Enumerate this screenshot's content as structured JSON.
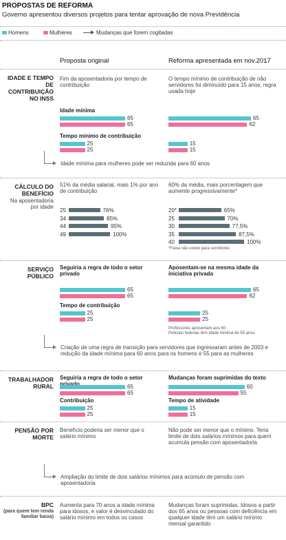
{
  "header": {
    "title": "PROPOSTAS DE REFORMA",
    "subtitle": "Governo apresentou diversos projetos para tentar aprovação de nova Previdência"
  },
  "legend": {
    "men": "Homens",
    "women": "Mulheres",
    "changes": "Mudanças que forem cogitadas"
  },
  "colors": {
    "men": "#55c5d0",
    "women": "#ef6f9c",
    "pct": "#5b6e76"
  },
  "columns": {
    "original": "Proposta original",
    "reform": "Reforma apresentada em nov.2017"
  },
  "sections": [
    {
      "label": "IDADE E TEMPO DE CONTRIBUIÇÃO NO INSS",
      "original_text": "Fim da aposentadoria por tempo de contribuição",
      "reform_text": "O tempo mínimo de contribuição de não servidores foi diminuído para 15 anos, regra usada hoje",
      "groups": [
        {
          "original_label": "Idade mínima",
          "original": {
            "men": 65,
            "women": 65
          },
          "reform": {
            "men": 65,
            "women": 62
          }
        },
        {
          "original_label": "Tempo mínimo de contribuição",
          "original": {
            "men": 25,
            "women": 25
          },
          "reform": {
            "men": 15,
            "women": 15
          }
        }
      ],
      "note": "Idade mínima para mulheres pode ser reduzida para 60 anos"
    },
    {
      "label": "CÁLCULO DO BENEFÍCIO",
      "sublabel": "Na aposentadoria por idade",
      "original_text": "51% da média salarial, mais 1% por ano de contribuição",
      "reform_text": "60% da média, mais porcentagem que aumente progressivamente*",
      "rows_original": [
        {
          "years": "25",
          "pct": 76,
          "pct_label": "76%"
        },
        {
          "years": "34",
          "pct": 85,
          "pct_label": "85%"
        },
        {
          "years": "44",
          "pct": 95,
          "pct_label": "95%"
        },
        {
          "years": "49",
          "pct": 100,
          "pct_label": "100%"
        }
      ],
      "rows_reform": [
        {
          "years": "20*",
          "pct": 65,
          "pct_label": "65%"
        },
        {
          "years": "25",
          "pct": 70,
          "pct_label": "70%"
        },
        {
          "years": "30",
          "pct": 77.5,
          "pct_label": "77,5%"
        },
        {
          "years": "35",
          "pct": 87.5,
          "pct_label": "87,5%"
        },
        {
          "years": "40",
          "pct": 100,
          "pct_label": "100%"
        }
      ],
      "footnote": "*Faixa não existe para servidores"
    },
    {
      "label": "SERVIÇO PÚBLICO",
      "original_heading": "Seguiria a regra de todo o setor privado",
      "reform_heading": "Aposentam-se na mesma idade da iniciativa privada",
      "groups": [
        {
          "original": {
            "men": 65,
            "women": 65
          },
          "reform": {
            "men": 65,
            "women": 62
          }
        },
        {
          "original_label": "Tempo de contribuição",
          "original": {
            "men": 25,
            "women": 25
          },
          "reform": {
            "men": 25,
            "women": 25
          }
        }
      ],
      "reform_notes": [
        "Professores aposentam aos 60",
        "Policiais federais têm idade mínima de 55 anos"
      ],
      "note": "Criação de uma regra de transição para servidores que ingressaram antes de 2003 e redução da idade mínima para 60 anos para os homens e 55 para as mulheres"
    },
    {
      "label": "TRABALHADOR RURAL",
      "original_heading": "Seguiria a regra de todo o setor privado",
      "reform_heading": "Mudanças foram suprimidas do texto",
      "groups": [
        {
          "original": {
            "men": 65,
            "women": 65
          },
          "reform": {
            "men": 60,
            "women": 55
          }
        },
        {
          "original_label": "Contribuição",
          "reform_label": "Tempo de atividade",
          "original": {
            "men": 25,
            "women": 25
          },
          "reform": {
            "men": 15,
            "women": 15
          }
        }
      ]
    },
    {
      "label": "PENSÃO POR MORTE",
      "original_text": "Benefício poderia ser menor que o salário mínimo",
      "reform_text": "Não pode ser menor que o mínimo. Teria limite de dois salários mínimos para quem acumula pensão com aposentadoria",
      "note": "Ampliação do limite de dois salários mínimos para acúmulo de pensão com aposentadoria"
    },
    {
      "label": "BPC",
      "sublabel": "(para quem tem renda familiar baixa)",
      "original_text": "Aumenta para 70 anos a idade mínima para idosos, e valor é desvinculado do salário mínimo em todos os casos",
      "reform_text": "Mudanças foram suprimidas. Idosos a partir dos 65 anos ou pessoas com deficiência em qualquer idade têm um salário mínimo mensal garantido"
    }
  ]
}
